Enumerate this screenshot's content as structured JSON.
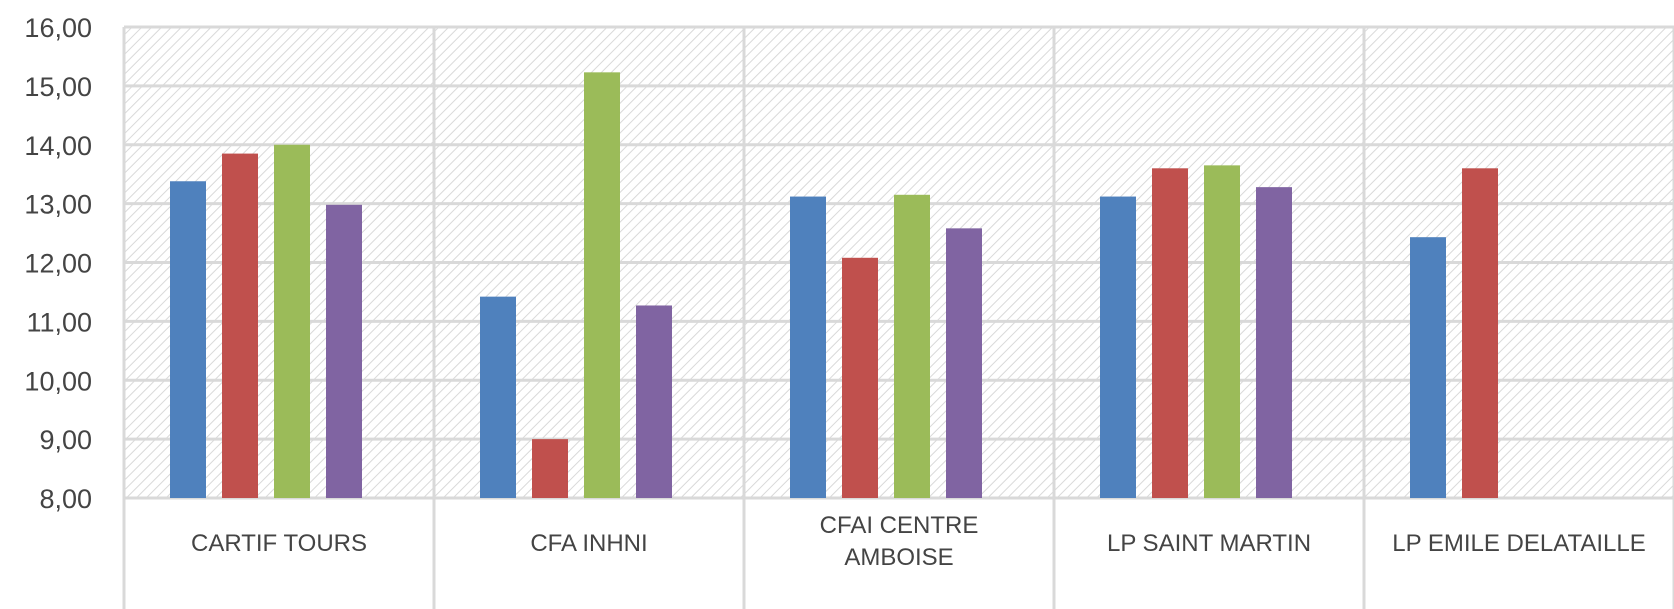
{
  "chart_data": {
    "type": "bar",
    "categories": [
      [
        "CARTIF TOURS"
      ],
      [
        "CFA INHNI"
      ],
      [
        "CFAI CENTRE",
        "AMBOISE"
      ],
      [
        "LP   SAINT MARTIN"
      ],
      [
        "LP EMILE DELATAILLE"
      ]
    ],
    "series": [
      {
        "color": "#4F81BD",
        "values": [
          13.38,
          11.42,
          13.12,
          13.12,
          12.43
        ]
      },
      {
        "color": "#C0504D",
        "values": [
          13.85,
          9.0,
          12.08,
          13.6,
          13.6
        ]
      },
      {
        "color": "#9BBB59",
        "values": [
          14.0,
          15.23,
          13.15,
          13.65,
          null
        ]
      },
      {
        "color": "#8064A2",
        "values": [
          12.98,
          11.27,
          12.58,
          13.28,
          null
        ]
      }
    ],
    "ylim": [
      8,
      16
    ],
    "yticks": [
      "8,00",
      "9,00",
      "10,00",
      "11,00",
      "12,00",
      "13,00",
      "14,00",
      "15,00",
      "16,00"
    ],
    "grid": true,
    "legend": "none"
  }
}
